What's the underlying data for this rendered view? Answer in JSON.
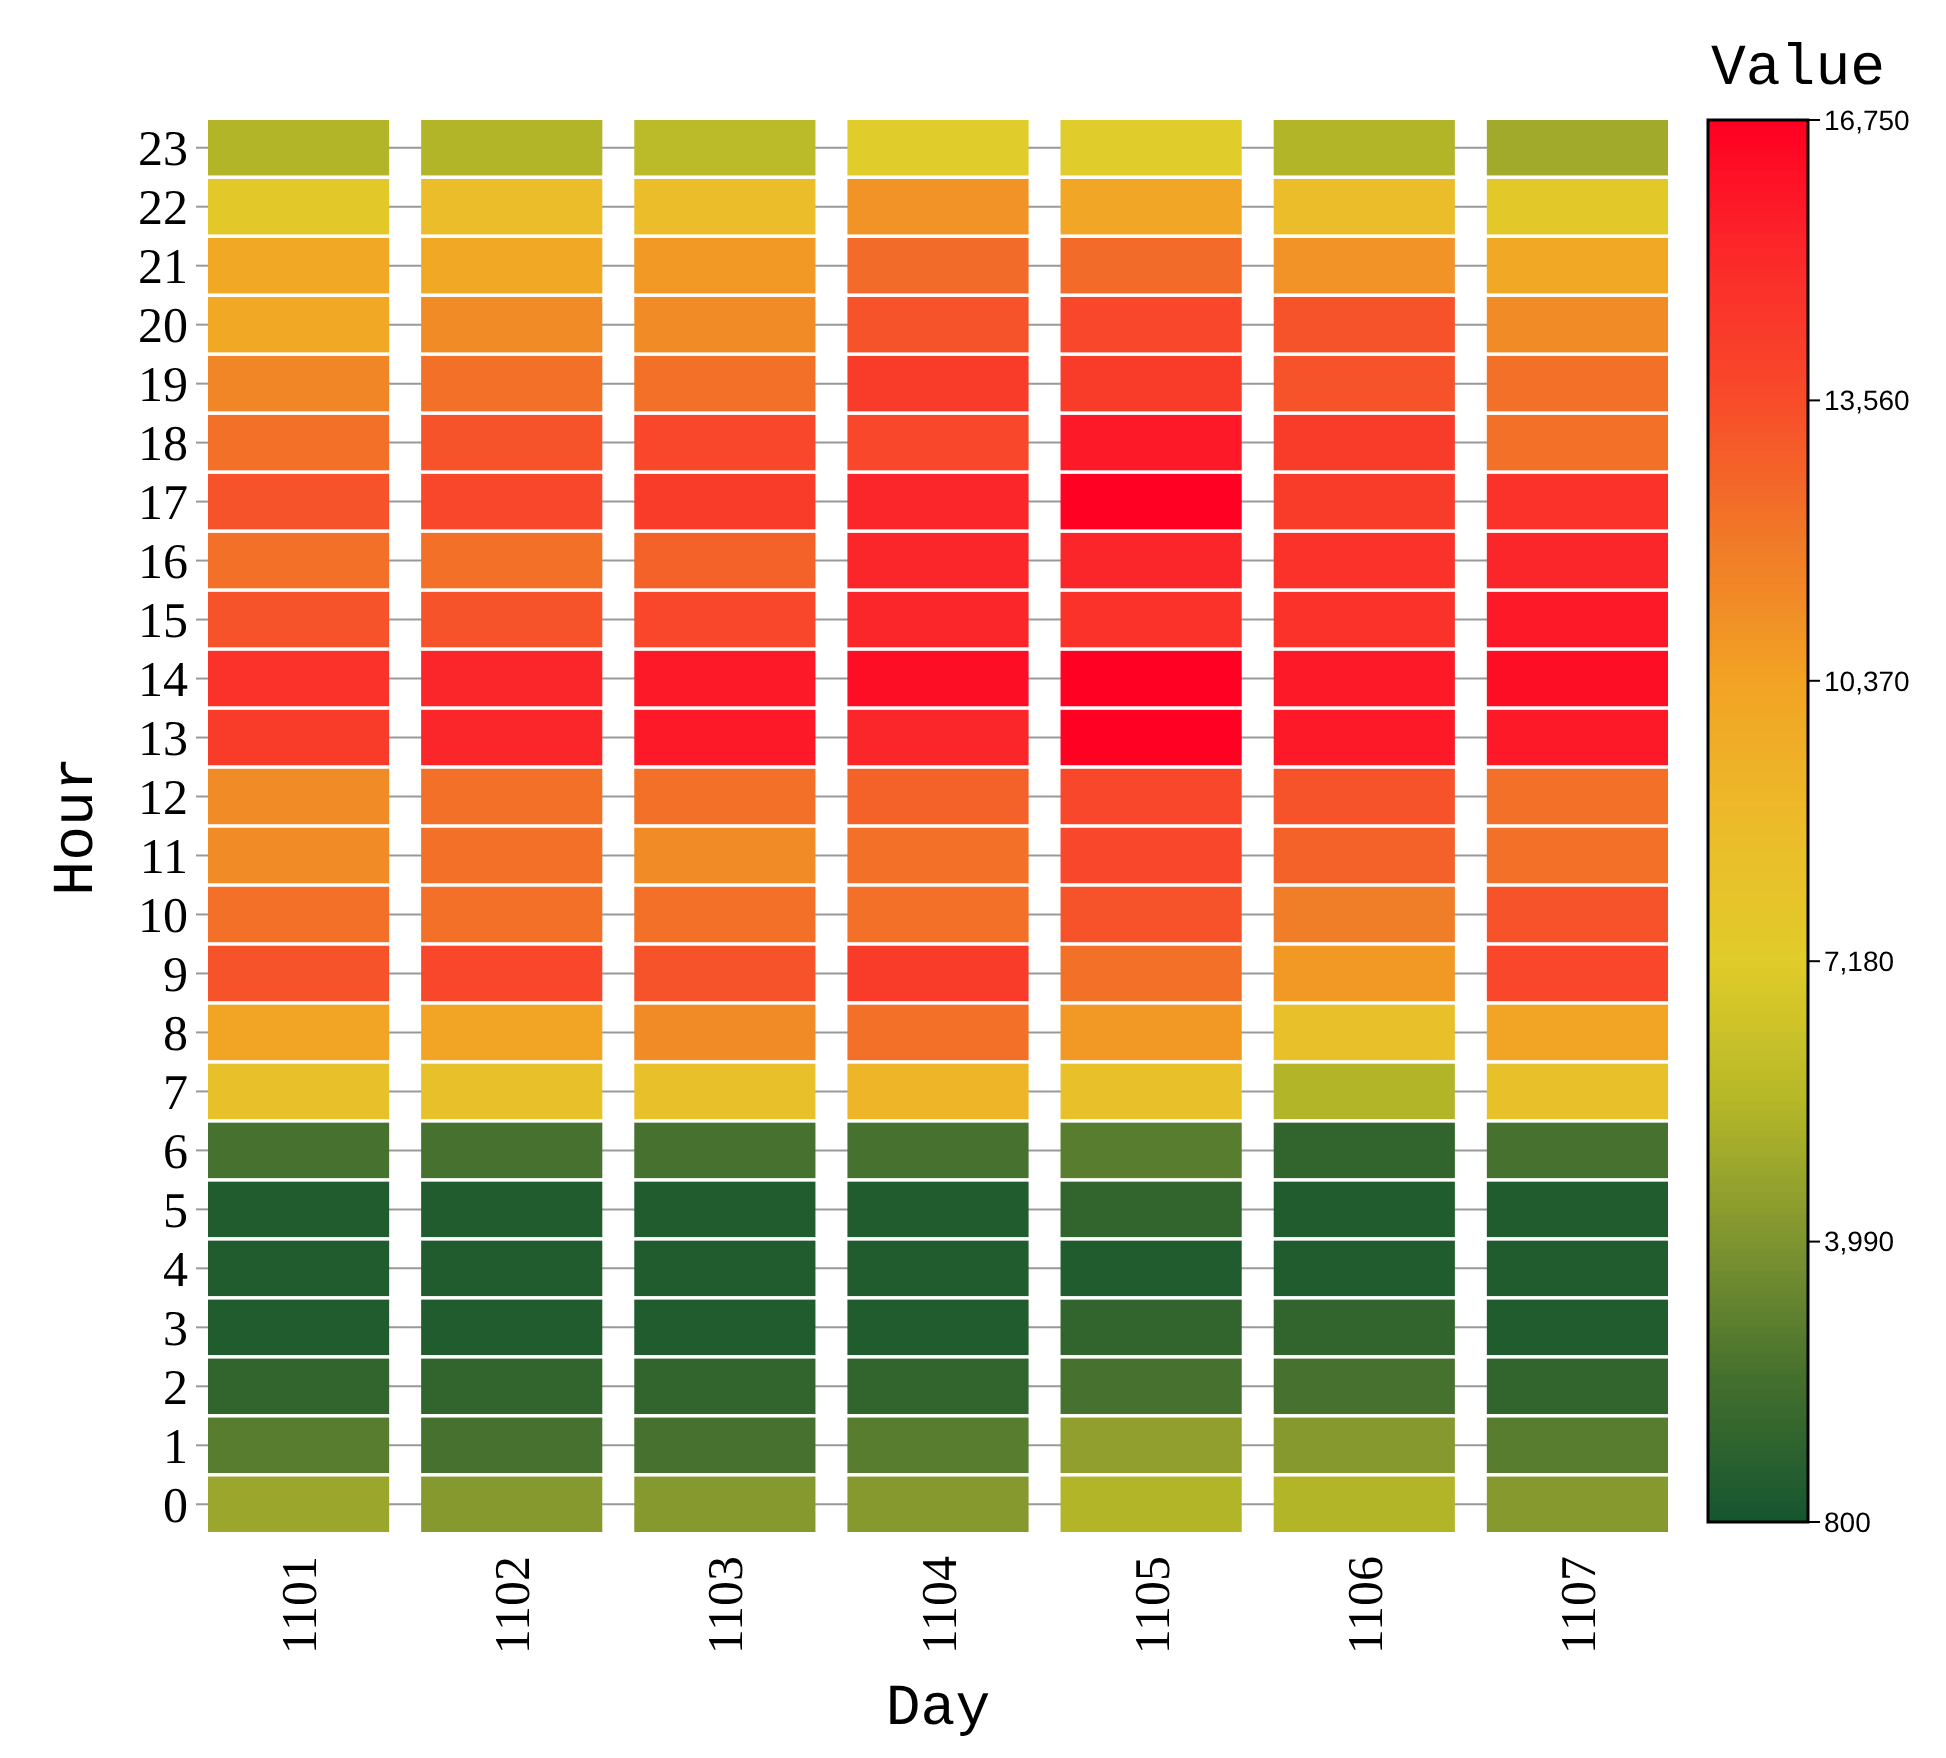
{
  "chart_data": {
    "type": "heatmap",
    "xlabel": "Day",
    "ylabel": "Hour",
    "clabel": "Value",
    "grid": "y",
    "categories": [
      "1101",
      "1102",
      "1103",
      "1104",
      "1105",
      "1106",
      "1107"
    ],
    "y_categories": [
      "23",
      "22",
      "21",
      "20",
      "19",
      "18",
      "17",
      "16",
      "15",
      "14",
      "13",
      "12",
      "11",
      "10",
      "9",
      "8",
      "7",
      "6",
      "5",
      "4",
      "3",
      "2",
      "1",
      "0"
    ],
    "clim": [
      800,
      16750
    ],
    "cticks": [
      {
        "value": 800,
        "label": "800"
      },
      {
        "value": 3990,
        "label": "3,990"
      },
      {
        "value": 7180,
        "label": "7,180"
      },
      {
        "value": 10370,
        "label": "10,370"
      },
      {
        "value": 13560,
        "label": "13,560"
      },
      {
        "value": 16750,
        "label": "16,750"
      }
    ],
    "cells": [
      [
        5500,
        5500,
        5800,
        7200,
        7200,
        5500,
        5000
      ],
      [
        7600,
        8600,
        8600,
        11000,
        10200,
        8600,
        7600
      ],
      [
        10000,
        10000,
        10800,
        12500,
        12500,
        11000,
        10000
      ],
      [
        10000,
        11300,
        11300,
        13300,
        13800,
        13300,
        11300
      ],
      [
        11500,
        12300,
        12300,
        14300,
        14300,
        13300,
        12300
      ],
      [
        12300,
        13300,
        13800,
        13800,
        15800,
        14300,
        12300
      ],
      [
        13300,
        13800,
        14300,
        15300,
        16700,
        14300,
        14800
      ],
      [
        12300,
        12300,
        12800,
        15300,
        15300,
        14800,
        15300
      ],
      [
        13300,
        13300,
        13800,
        15300,
        14800,
        14800,
        15800
      ],
      [
        14800,
        15300,
        15800,
        16200,
        16700,
        15800,
        16200
      ],
      [
        14300,
        15300,
        15800,
        15300,
        16700,
        15800,
        15800
      ],
      [
        11300,
        12300,
        12300,
        12800,
        13800,
        13300,
        12300
      ],
      [
        11300,
        12300,
        11300,
        12300,
        13800,
        12800,
        12300
      ],
      [
        12300,
        12300,
        12300,
        12300,
        13300,
        11800,
        13300
      ],
      [
        13300,
        13800,
        13300,
        14300,
        12300,
        10800,
        13800
      ],
      [
        10300,
        10300,
        11300,
        12300,
        10800,
        8200,
        10300
      ],
      [
        8200,
        8200,
        8200,
        9200,
        8200,
        5500,
        8200
      ],
      [
        2500,
        2500,
        2500,
        2500,
        3000,
        1800,
        2500
      ],
      [
        1200,
        1200,
        1200,
        1200,
        1800,
        1200,
        1200
      ],
      [
        1200,
        1200,
        1200,
        1200,
        1200,
        1200,
        1200
      ],
      [
        1200,
        1200,
        1200,
        1200,
        1800,
        1800,
        1200
      ],
      [
        1800,
        1800,
        1800,
        1800,
        2500,
        2500,
        1800
      ],
      [
        3000,
        2500,
        2500,
        3000,
        4500,
        4200,
        3000
      ],
      [
        4800,
        4200,
        4200,
        4200,
        5500,
        5500,
        4200
      ]
    ]
  }
}
